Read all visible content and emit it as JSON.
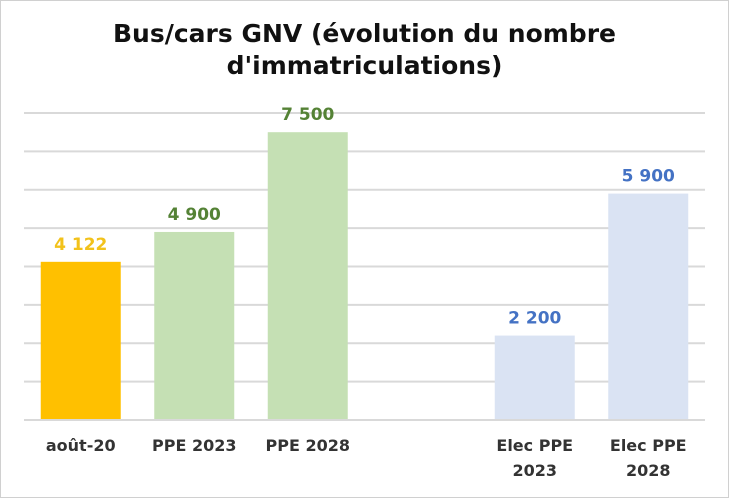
{
  "chart_data": {
    "type": "bar",
    "title": "Bus/cars GNV (évolution du nombre d'immatriculations)",
    "title_lines": [
      "Bus/cars GNV (évolution du nombre",
      "d'immatriculations)"
    ],
    "categories": [
      "août-20",
      "PPE 2023",
      "PPE 2028",
      "",
      "Elec PPE 2023",
      "Elec PPE 2028"
    ],
    "category_lines": [
      [
        "août-20"
      ],
      [
        "PPE 2023"
      ],
      [
        "PPE 2028"
      ],
      [],
      [
        "Elec PPE",
        "2023"
      ],
      [
        "Elec PPE",
        "2028"
      ]
    ],
    "values": [
      4122,
      4900,
      7500,
      null,
      2200,
      5900
    ],
    "data_labels": [
      "4 122",
      "4 900",
      "7 500",
      "",
      "2 200",
      "5 900"
    ],
    "bar_colors": [
      "#ffc000",
      "#c5e0b4",
      "#c5e0b4",
      null,
      "#dae3f3",
      "#dae3f3"
    ],
    "label_colors": [
      "#f2c21b",
      "#548235",
      "#548235",
      null,
      "#4472c4",
      "#4472c4"
    ],
    "ylim": [
      0,
      8000
    ],
    "grid": true,
    "y_axis_labels_shown": false
  }
}
